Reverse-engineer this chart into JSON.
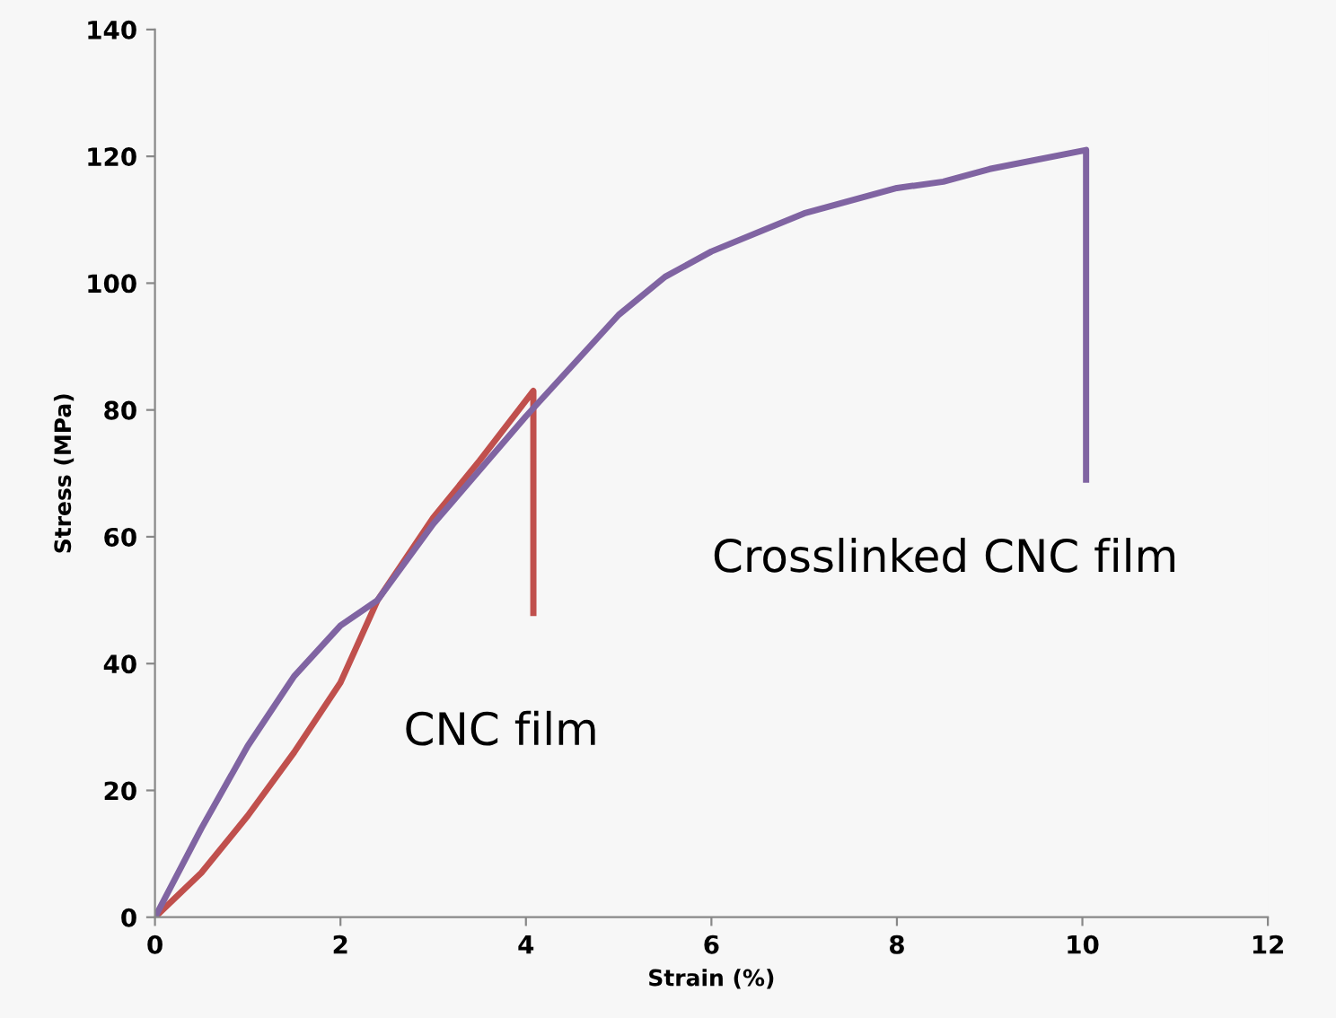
{
  "chart_data": {
    "type": "line",
    "xlabel": "Strain (%)",
    "ylabel": "Stress (MPa)",
    "xlim": [
      0,
      12
    ],
    "xticks": [
      0,
      2,
      4,
      6,
      8,
      10,
      12
    ],
    "ylim": [
      0,
      140
    ],
    "yticks": [
      0,
      20,
      40,
      60,
      80,
      100,
      120,
      140
    ],
    "grid": false,
    "legend": false,
    "marker": "none",
    "line_style": "solid",
    "series": [
      {
        "name": "CNC film",
        "color": "#c0504d",
        "x": [
          0,
          0.5,
          1,
          1.5,
          2,
          2.4,
          3,
          3.5,
          4.08,
          4.08
        ],
        "values": [
          0,
          7,
          16,
          26,
          37,
          50,
          63,
          72,
          83,
          48
        ]
      },
      {
        "name": "Crosslinked CNC film",
        "color": "#8064a2",
        "x": [
          0,
          0.5,
          1,
          1.5,
          2,
          2.4,
          3,
          4,
          4.5,
          5,
          5.5,
          6,
          7,
          8,
          8.5,
          9,
          10.04,
          10.04
        ],
        "values": [
          0,
          14,
          27,
          38,
          46,
          50,
          62,
          79,
          87,
          95,
          101,
          105,
          111,
          115,
          116,
          118,
          121,
          69
        ]
      }
    ]
  }
}
